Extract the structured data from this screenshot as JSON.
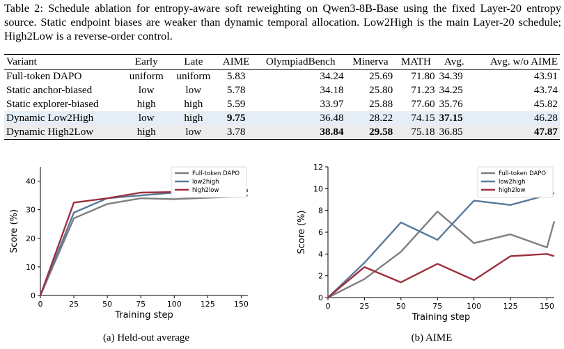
{
  "caption": "Table 2: Schedule ablation for entropy-aware soft reweighting on Qwen3-8B-Base using the fixed Layer-20 entropy source. Static endpoint biases are weaker than dynamic temporal allocation. Low2High is the main Layer-20 schedule; High2Low is a reverse-order control.",
  "table": {
    "headers": [
      "Variant",
      "Early",
      "Late",
      "AIME",
      "OlympiadBench",
      "Minerva",
      "MATH",
      "Avg.",
      "Avg. w/o AIME"
    ],
    "rows": [
      [
        "Full-token DAPO",
        "uniform",
        "uniform",
        "5.83",
        "34.24",
        "25.69",
        "71.80",
        "34.39",
        "43.91"
      ],
      [
        "Static anchor-biased",
        "low",
        "low",
        "5.78",
        "34.18",
        "25.80",
        "71.23",
        "34.25",
        "43.74"
      ],
      [
        "Static explorer-biased",
        "high",
        "high",
        "5.59",
        "33.97",
        "25.88",
        "77.60",
        "35.76",
        "45.82"
      ],
      [
        "Dynamic Low2High",
        "low",
        "high",
        "9.75",
        "36.48",
        "28.22",
        "74.15",
        "37.15",
        "46.28"
      ],
      [
        "Dynamic High2Low",
        "high",
        "low",
        "3.78",
        "38.84",
        "29.58",
        "75.18",
        "36.85",
        "47.87"
      ]
    ]
  },
  "colors": {
    "full": "#7f7f7f",
    "low2high": "#587a9a",
    "high2low": "#9e2f3c",
    "row_highlight": "#e5edf6"
  },
  "chart_data": [
    {
      "type": "line",
      "xlabel": "Training step",
      "ylabel": "Score (%)",
      "xticks": [
        0,
        25,
        50,
        75,
        100,
        125,
        150
      ],
      "yticks": [
        0,
        10,
        20,
        30,
        40
      ],
      "xlim": [
        0,
        155
      ],
      "ylim": [
        0,
        45
      ],
      "legend": "top-right",
      "caption": "(a) Held-out average",
      "x": [
        0,
        25,
        50,
        75,
        100,
        125,
        150,
        155
      ],
      "series": [
        {
          "name": "Full-token DAPO",
          "values": [
            0,
            27.0,
            32.0,
            34.0,
            33.7,
            34.2,
            34.6,
            35.0
          ]
        },
        {
          "name": "low2high",
          "values": [
            0,
            29.0,
            34.0,
            35.0,
            36.0,
            37.0,
            37.0,
            37.0
          ]
        },
        {
          "name": "high2low",
          "values": [
            0,
            32.5,
            34.0,
            36.0,
            36.2,
            36.5,
            36.7,
            36.5
          ]
        }
      ]
    },
    {
      "type": "line",
      "xlabel": "Training step",
      "ylabel": "Score (%)",
      "xticks": [
        0,
        25,
        50,
        75,
        100,
        125,
        150
      ],
      "yticks": [
        0,
        2,
        4,
        6,
        8,
        10,
        12
      ],
      "xlim": [
        0,
        155
      ],
      "ylim": [
        0,
        12
      ],
      "legend": "top-right",
      "caption": "(b) AIME",
      "x": [
        0,
        25,
        50,
        75,
        100,
        125,
        150,
        155
      ],
      "series": [
        {
          "name": "Full-token DAPO",
          "values": [
            0,
            1.7,
            4.2,
            7.9,
            5.0,
            5.8,
            4.6,
            7.0
          ]
        },
        {
          "name": "low2high",
          "values": [
            0,
            3.2,
            6.9,
            5.3,
            8.9,
            8.5,
            9.4,
            9.6
          ]
        },
        {
          "name": "high2low",
          "values": [
            0,
            2.8,
            1.4,
            3.1,
            1.6,
            3.8,
            4.0,
            3.8
          ]
        }
      ]
    }
  ]
}
